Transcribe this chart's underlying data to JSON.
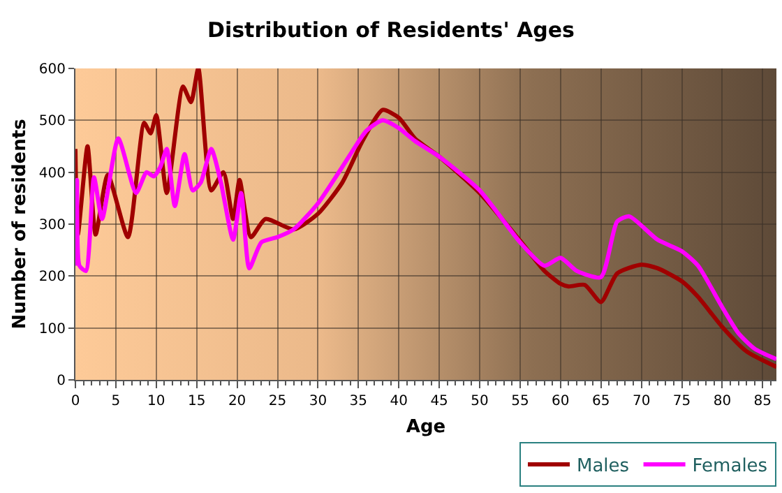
{
  "chart_data": {
    "type": "line",
    "title": "Distribution of Residents' Ages",
    "xlabel": "Age",
    "ylabel": "Number of residents",
    "xlim": [
      0,
      86.7
    ],
    "xticks": [
      0,
      5,
      10,
      15,
      20,
      25,
      30,
      35,
      40,
      45,
      50,
      55,
      60,
      65,
      70,
      75,
      80,
      85
    ],
    "ylim": [
      0,
      600
    ],
    "yticks": [
      0,
      100,
      200,
      300,
      400,
      500,
      600
    ],
    "grid": true,
    "legend": "bottom right",
    "marker": "none",
    "line_style": "solid",
    "series": [
      {
        "name": "Males",
        "color": "#a00000",
        "x": [
          0,
          0.3,
          1.5,
          2.5,
          4,
          6.5,
          8.5,
          9.3,
          10,
          11.3,
          13.3,
          14.3,
          15.2,
          16.8,
          18.3,
          19.5,
          20.3,
          21.7,
          23.5,
          27,
          30,
          33,
          35.5,
          38,
          40,
          42,
          45,
          50,
          55,
          58,
          60,
          61,
          63,
          65,
          67,
          70,
          72,
          75,
          77,
          80,
          83,
          86.7
        ],
        "values": [
          445,
          280,
          450,
          280,
          395,
          275,
          495,
          475,
          510,
          360,
          565,
          535,
          600,
          365,
          400,
          310,
          385,
          275,
          310,
          290,
          320,
          380,
          460,
          520,
          505,
          465,
          430,
          360,
          268,
          210,
          185,
          180,
          183,
          150,
          205,
          222,
          215,
          190,
          160,
          102,
          55,
          25
        ]
      },
      {
        "name": "Females",
        "color": "#ff00ff",
        "x": [
          0,
          0.2,
          0.5,
          1.3,
          2.3,
          3.3,
          5.3,
          7.5,
          8.8,
          9.7,
          10.5,
          11.3,
          12.3,
          13.5,
          14.5,
          15.5,
          16.8,
          18,
          19.5,
          20.5,
          21.5,
          23,
          25,
          27,
          30,
          33,
          36,
          38,
          40,
          42,
          45,
          50,
          55,
          58,
          60,
          62,
          65,
          67,
          68.5,
          72,
          75,
          77,
          80,
          82,
          84,
          86.7
        ],
        "values": [
          220,
          385,
          220,
          210,
          390,
          310,
          465,
          360,
          400,
          392,
          410,
          445,
          335,
          435,
          365,
          380,
          445,
          380,
          270,
          360,
          215,
          265,
          275,
          290,
          340,
          410,
          480,
          500,
          485,
          460,
          430,
          365,
          265,
          220,
          235,
          210,
          198,
          305,
          315,
          270,
          248,
          220,
          140,
          90,
          60,
          40
        ]
      }
    ]
  }
}
